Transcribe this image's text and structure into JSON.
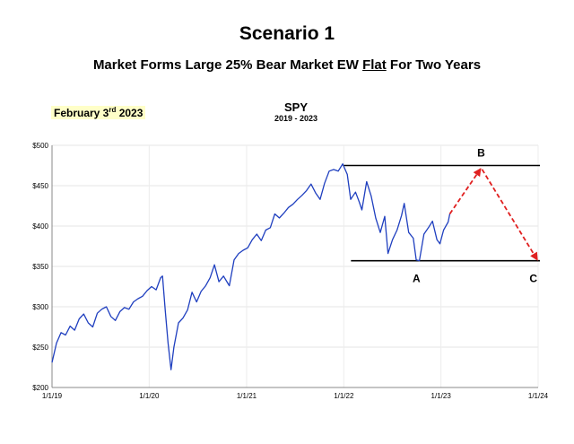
{
  "title": "Scenario 1",
  "subtitle": {
    "before": "Market Forms Large 25% Bear Market EW ",
    "underlined": "Flat",
    "after": " For Two Years"
  },
  "date": {
    "main": "February 3",
    "sup": "rd",
    "year": " 2023"
  },
  "ticker": "SPY",
  "period": "2019 - 2023",
  "chart_data": {
    "type": "line",
    "ylim": [
      200,
      500
    ],
    "xlim": [
      "1/1/19",
      "1/1/24"
    ],
    "y_ticks": [
      {
        "value": 200,
        "label": "$200"
      },
      {
        "value": 250,
        "label": "$250"
      },
      {
        "value": 300,
        "label": "$300"
      },
      {
        "value": 350,
        "label": "$350"
      },
      {
        "value": 400,
        "label": "$400"
      },
      {
        "value": 450,
        "label": "$450"
      },
      {
        "value": 500,
        "label": "$500"
      }
    ],
    "x_ticks": [
      "1/1/19",
      "1/1/20",
      "1/1/21",
      "1/1/22",
      "1/1/23",
      "1/1/24"
    ],
    "series": [
      {
        "color": "#1f3fbf",
        "points": [
          [
            "1/1/19",
            231
          ],
          [
            "1/18/19",
            255
          ],
          [
            "2/4/19",
            268
          ],
          [
            "2/21/19",
            265
          ],
          [
            "3/10/19",
            276
          ],
          [
            "3/27/19",
            271
          ],
          [
            "4/13/19",
            285
          ],
          [
            "4/30/19",
            291
          ],
          [
            "5/17/19",
            280
          ],
          [
            "6/3/19",
            275
          ],
          [
            "6/20/19",
            292
          ],
          [
            "7/7/19",
            297
          ],
          [
            "7/24/19",
            300
          ],
          [
            "8/10/19",
            288
          ],
          [
            "8/27/19",
            283
          ],
          [
            "9/13/19",
            294
          ],
          [
            "9/30/19",
            299
          ],
          [
            "10/17/19",
            297
          ],
          [
            "11/3/19",
            306
          ],
          [
            "11/20/19",
            310
          ],
          [
            "12/7/19",
            313
          ],
          [
            "12/24/19",
            320
          ],
          [
            "1/10/20",
            325
          ],
          [
            "1/27/20",
            321
          ],
          [
            "2/13/20",
            336
          ],
          [
            "2/20/20",
            338
          ],
          [
            "3/1/20",
            296
          ],
          [
            "3/12/20",
            255
          ],
          [
            "3/23/20",
            222
          ],
          [
            "4/3/20",
            250
          ],
          [
            "4/20/20",
            280
          ],
          [
            "5/7/20",
            286
          ],
          [
            "5/24/20",
            296
          ],
          [
            "6/10/20",
            318
          ],
          [
            "6/27/20",
            306
          ],
          [
            "7/14/20",
            319
          ],
          [
            "7/31/20",
            326
          ],
          [
            "8/17/20",
            336
          ],
          [
            "9/2/20",
            352
          ],
          [
            "9/19/20",
            331
          ],
          [
            "10/6/20",
            338
          ],
          [
            "10/28/20",
            326
          ],
          [
            "11/15/20",
            358
          ],
          [
            "12/2/20",
            366
          ],
          [
            "12/19/20",
            370
          ],
          [
            "1/5/21",
            373
          ],
          [
            "1/22/21",
            383
          ],
          [
            "2/8/21",
            390
          ],
          [
            "2/25/21",
            382
          ],
          [
            "3/14/21",
            395
          ],
          [
            "3/31/21",
            398
          ],
          [
            "4/17/21",
            415
          ],
          [
            "5/4/21",
            410
          ],
          [
            "5/21/21",
            416
          ],
          [
            "6/7/21",
            423
          ],
          [
            "6/24/21",
            427
          ],
          [
            "7/11/21",
            433
          ],
          [
            "7/28/21",
            438
          ],
          [
            "8/14/21",
            444
          ],
          [
            "8/31/21",
            452
          ],
          [
            "9/17/21",
            441
          ],
          [
            "10/4/21",
            433
          ],
          [
            "10/21/21",
            453
          ],
          [
            "11/7/21",
            468
          ],
          [
            "11/24/21",
            470
          ],
          [
            "12/11/21",
            468
          ],
          [
            "12/28/21",
            477
          ],
          [
            "1/14/22",
            464
          ],
          [
            "1/27/22",
            433
          ],
          [
            "2/14/22",
            442
          ],
          [
            "2/28/22",
            430
          ],
          [
            "3/10/22",
            420
          ],
          [
            "3/28/22",
            455
          ],
          [
            "4/14/22",
            437
          ],
          [
            "5/1/22",
            410
          ],
          [
            "5/18/22",
            392
          ],
          [
            "6/4/22",
            412
          ],
          [
            "6/16/22",
            366
          ],
          [
            "7/3/22",
            383
          ],
          [
            "7/20/22",
            395
          ],
          [
            "8/6/22",
            413
          ],
          [
            "8/16/22",
            428
          ],
          [
            "9/2/22",
            392
          ],
          [
            "9/19/22",
            385
          ],
          [
            "9/30/22",
            358
          ],
          [
            "10/12/22",
            357
          ],
          [
            "10/29/22",
            390
          ],
          [
            "11/15/22",
            398
          ],
          [
            "11/30/22",
            406
          ],
          [
            "12/17/22",
            383
          ],
          [
            "12/28/22",
            378
          ],
          [
            "1/11/23",
            395
          ],
          [
            "1/28/23",
            405
          ],
          [
            "2/3/23",
            415
          ]
        ]
      }
    ],
    "projection": {
      "color": "#e02020",
      "points": [
        [
          "2/3/23",
          415
        ],
        [
          "6/1/23",
          472
        ],
        [
          "12/31/23",
          357
        ]
      ]
    },
    "levels": [
      {
        "value": 475,
        "from": "1/1/22",
        "to": "1/1/24"
      },
      {
        "value": 357,
        "from": "1/1/22",
        "to": "1/1/24"
      }
    ],
    "annotations": [
      {
        "label": "A",
        "x": "10/1/22",
        "y": 357
      },
      {
        "label": "B",
        "x": "6/1/23",
        "y": 475
      },
      {
        "label": "C",
        "x": "12/31/23",
        "y": 357
      }
    ]
  }
}
